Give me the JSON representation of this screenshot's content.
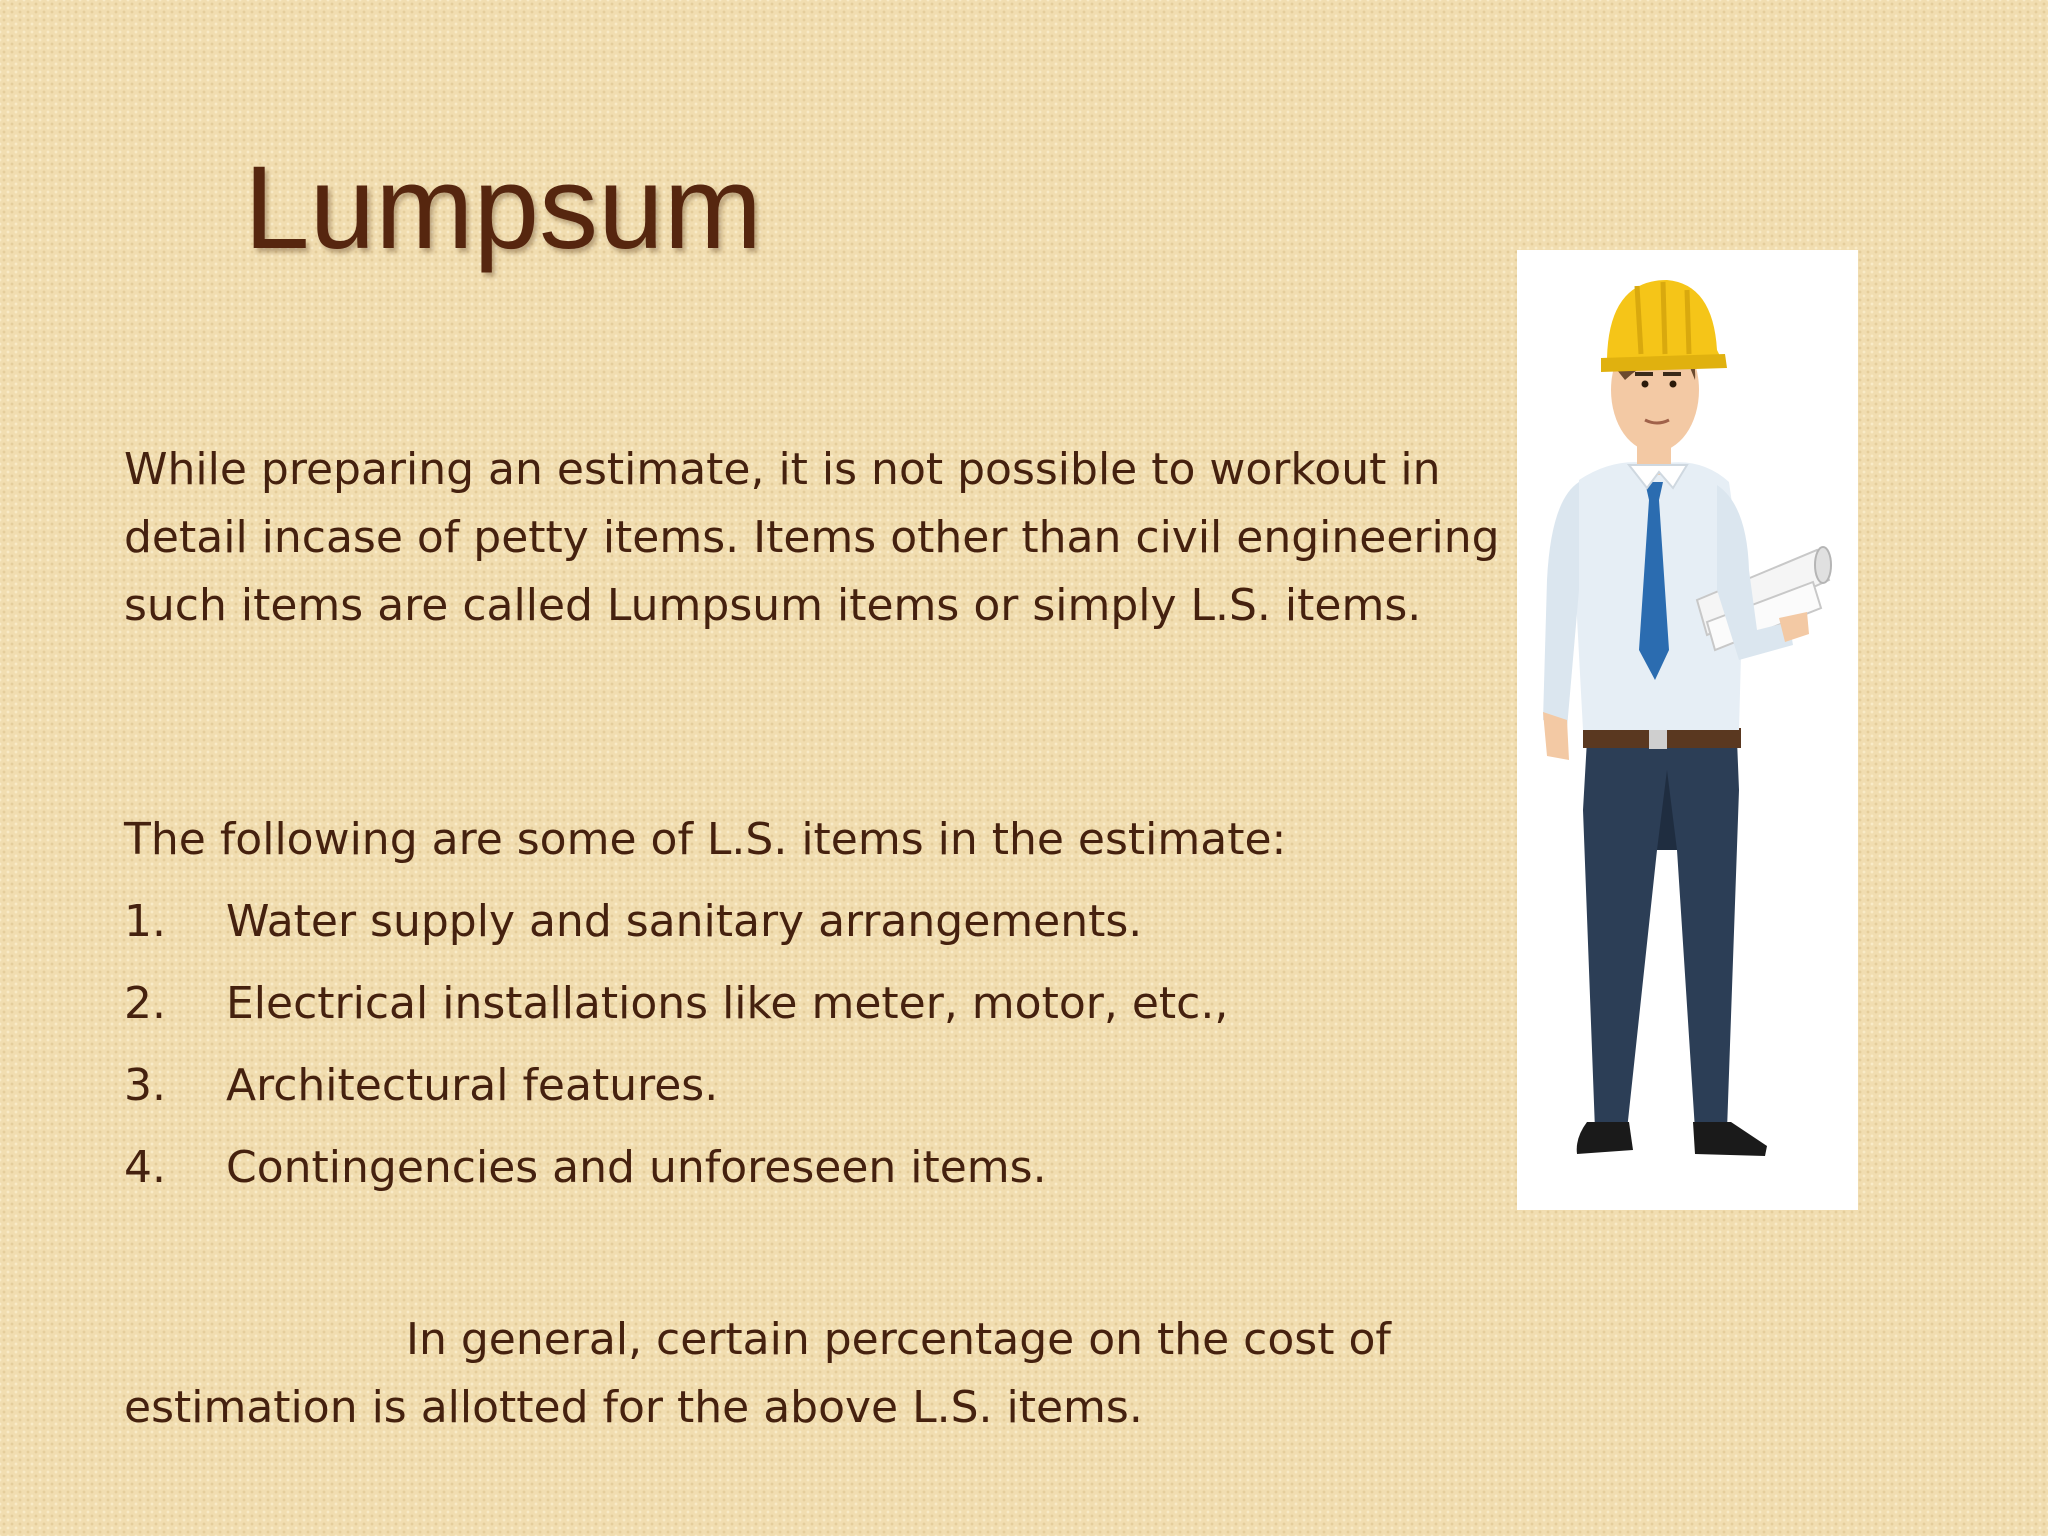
{
  "slide": {
    "title": "Lumpsum",
    "paragraph": "While preparing an estimate, it is not possible to workout in detail incase of petty items. Items other than civil engineering such items are called Lumpsum items or simply L.S. items.",
    "list_intro": "The following are some of L.S. items in the estimate:",
    "items": [
      {
        "num": "1.",
        "text": "Water supply and sanitary arrangements."
      },
      {
        "num": "2.",
        "text": "Electrical installations like meter, motor, etc.,"
      },
      {
        "num": "3.",
        "text": "Architectural features."
      },
      {
        "num": "4.",
        "text": "Contingencies and unforeseen items."
      }
    ],
    "closing_line1": "In general, certain percentage on the cost of",
    "closing_line2": "estimation is allotted for the above L.S. items."
  },
  "illustration": {
    "icon": "engineer-illustration-icon",
    "colors": {
      "helmet": "#f5c518",
      "shirt": "#e6eef5",
      "tie": "#2b6cb0",
      "trousers": "#2c3e56",
      "skin": "#f3c9a4"
    }
  }
}
